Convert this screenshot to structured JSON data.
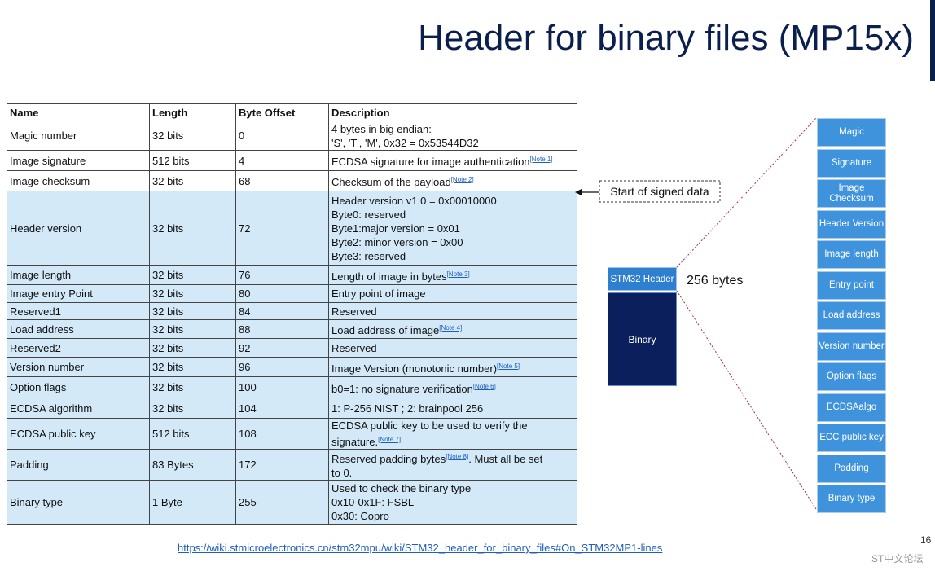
{
  "header": {
    "title": "Header for binary files (MP15x)"
  },
  "table": {
    "columns": [
      "Name",
      "Length",
      "Byte Offset",
      "Description"
    ],
    "rows": [
      {
        "name": "Magic number",
        "length": "32 bits",
        "offset": "0",
        "description": [
          [
            {
              "t": "4 bytes in big endian:"
            }
          ],
          [
            {
              "t": "'S', 'T', 'M', 0x32 = 0x53544D32"
            }
          ]
        ]
      },
      {
        "name": "Image signature",
        "length": "512 bits",
        "offset": "4",
        "description": [
          [
            {
              "t": "ECDSA signature for image authentication"
            },
            {
              "note": "[Note 1]"
            }
          ]
        ]
      },
      {
        "name": "Image checksum",
        "length": "32 bits",
        "offset": "68",
        "description": [
          [
            {
              "t": "Checksum of the payload"
            },
            {
              "note": "[Note 2]"
            }
          ]
        ]
      },
      {
        "name": "Header version",
        "length": "32 bits",
        "offset": "72",
        "description": [
          [
            {
              "t": "Header version v1.0 = 0x00010000"
            }
          ],
          [
            {
              "t": "Byte0: reserved"
            }
          ],
          [
            {
              "t": "Byte1:major version = 0x01"
            }
          ],
          [
            {
              "t": "Byte2: minor version = 0x00"
            }
          ],
          [
            {
              "t": "Byte3: reserved"
            }
          ]
        ]
      },
      {
        "name": "Image length",
        "length": "32 bits",
        "offset": "76",
        "description": [
          [
            {
              "t": "Length of image in bytes"
            },
            {
              "note": "[Note 3]"
            }
          ]
        ]
      },
      {
        "name": "Image entry Point",
        "length": "32 bits",
        "offset": "80",
        "description": [
          [
            {
              "t": "Entry point of image"
            }
          ]
        ]
      },
      {
        "name": "Reserved1",
        "length": "32 bits",
        "offset": "84",
        "description": [
          [
            {
              "t": "Reserved"
            }
          ]
        ]
      },
      {
        "name": "Load address",
        "length": "32 bits",
        "offset": "88",
        "description": [
          [
            {
              "t": "Load address of image"
            },
            {
              "note": "[Note 4]"
            }
          ]
        ]
      },
      {
        "name": "Reserved2",
        "length": "32 bits",
        "offset": "92",
        "description": [
          [
            {
              "t": "Reserved"
            }
          ]
        ]
      },
      {
        "name": "Version number",
        "length": "32 bits",
        "offset": "96",
        "description": [
          [
            {
              "t": "Image Version (monotonic number)"
            },
            {
              "note": "[Note 5]"
            }
          ]
        ]
      },
      {
        "name": "Option flags",
        "length": "32 bits",
        "offset": "100",
        "description": [
          [
            {
              "t": "b0=1: no signature verification"
            },
            {
              "note": "[Note 6]"
            }
          ]
        ]
      },
      {
        "name": "ECDSA algorithm",
        "length": "32 bits",
        "offset": "104",
        "description": [
          [
            {
              "t": "1: P-256 NIST ; 2: brainpool 256"
            }
          ]
        ]
      },
      {
        "name": "ECDSA public key",
        "length": "512 bits",
        "offset": "108",
        "description": [
          [
            {
              "t": "ECDSA public key to be used to verify the"
            }
          ],
          [
            {
              "t": "signature."
            },
            {
              "note": "[Note 7]"
            }
          ]
        ]
      },
      {
        "name": "Padding",
        "length": "83 Bytes",
        "offset": "172",
        "description": [
          [
            {
              "t": "Reserved padding bytes"
            },
            {
              "note": "[Note 8]"
            },
            {
              "t": ". Must all be set"
            }
          ],
          [
            {
              "t": "to 0."
            }
          ]
        ]
      },
      {
        "name": "Binary type",
        "length": "1 Byte",
        "offset": "255",
        "description": [
          [
            {
              "t": "Used to check the binary type"
            }
          ],
          [
            {
              "t": "0x10-0x1F: FSBL"
            }
          ],
          [
            {
              "t": "0x30: Copro"
            }
          ]
        ]
      }
    ]
  },
  "diagram": {
    "signed_note": "Start of signed data",
    "header_box": "STM32 Header",
    "size": "256 bytes",
    "binary_box": "Binary",
    "fields": [
      [
        "Magic"
      ],
      [
        "Signature"
      ],
      [
        "Image",
        "Checksum"
      ],
      [
        "Header Version"
      ],
      [
        "Image length"
      ],
      [
        "Entry point"
      ],
      [
        "Load address"
      ],
      [
        "Version number"
      ],
      [
        "Option flags"
      ],
      [
        "ECDSAalgo"
      ],
      [
        "ECC public key"
      ],
      [
        "Padding"
      ],
      [
        "Binary type"
      ]
    ]
  },
  "footer": {
    "link": "https://wiki.stmicroelectronics.cn/stm32mpu/wiki/STM32_header_for_binary_files#On_STM32MP1-lines",
    "page": "16",
    "watermark": "ST中文论坛"
  }
}
